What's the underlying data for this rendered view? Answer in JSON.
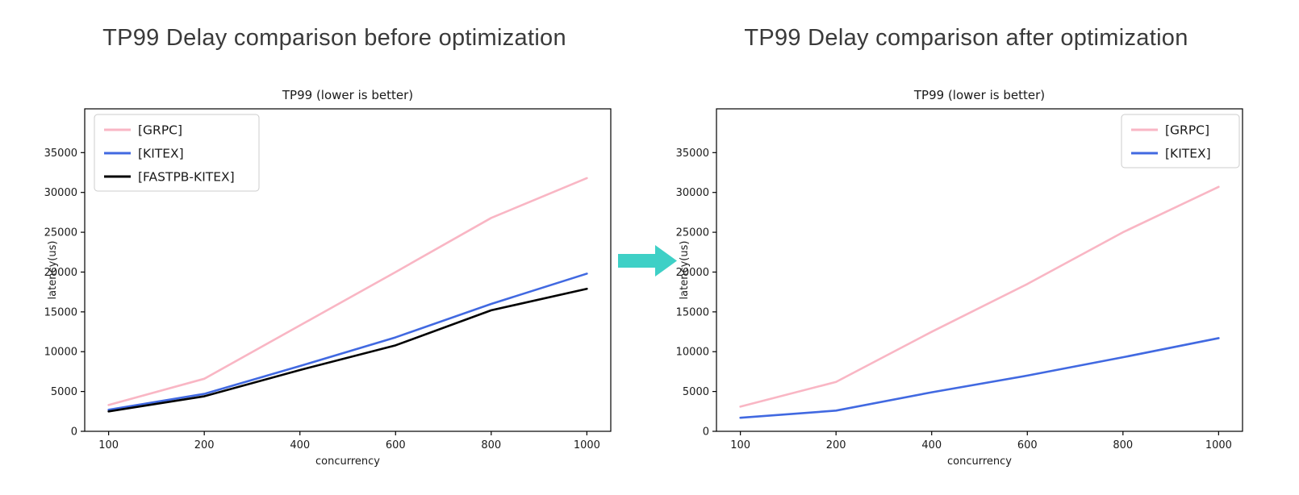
{
  "headers": {
    "before": "TP99 Delay comparison before optimization",
    "after": "TP99 Delay comparison after optimization"
  },
  "arrow": {
    "icon": "right-arrow-icon",
    "color": "#3ed0c6"
  },
  "chart_data": [
    {
      "id": "before",
      "type": "line",
      "title": "TP99 (lower is better)",
      "xlabel": "concurrency",
      "ylabel": "latency(us)",
      "categories": [
        "100",
        "200",
        "400",
        "600",
        "800",
        "1000"
      ],
      "yticks": [
        0,
        5000,
        10000,
        15000,
        20000,
        25000,
        30000,
        35000
      ],
      "ylim": [
        0,
        40500
      ],
      "grid": false,
      "legend_position": "upper-left",
      "series": [
        {
          "name": "[GRPC]",
          "color": "#f9b6c4",
          "values": [
            3300,
            6600,
            13300,
            20000,
            26800,
            31800
          ]
        },
        {
          "name": "[KITEX]",
          "color": "#4169e1",
          "values": [
            2700,
            4700,
            8200,
            11800,
            16000,
            19800
          ]
        },
        {
          "name": "[FASTPB-KITEX]",
          "color": "#000000",
          "values": [
            2500,
            4400,
            7700,
            10800,
            15200,
            17900
          ]
        }
      ]
    },
    {
      "id": "after",
      "type": "line",
      "title": "TP99 (lower is better)",
      "xlabel": "concurrency",
      "ylabel": "latency(us)",
      "categories": [
        "100",
        "200",
        "400",
        "600",
        "800",
        "1000"
      ],
      "yticks": [
        0,
        5000,
        10000,
        15000,
        20000,
        25000,
        30000,
        35000
      ],
      "ylim": [
        0,
        40500
      ],
      "grid": false,
      "legend_position": "upper-right",
      "series": [
        {
          "name": "[GRPC]",
          "color": "#f9b6c4",
          "values": [
            3100,
            6200,
            12500,
            18500,
            25000,
            30700
          ]
        },
        {
          "name": "[KITEX]",
          "color": "#4169e1",
          "values": [
            1700,
            2600,
            4900,
            7000,
            9300,
            11700
          ]
        }
      ]
    }
  ]
}
